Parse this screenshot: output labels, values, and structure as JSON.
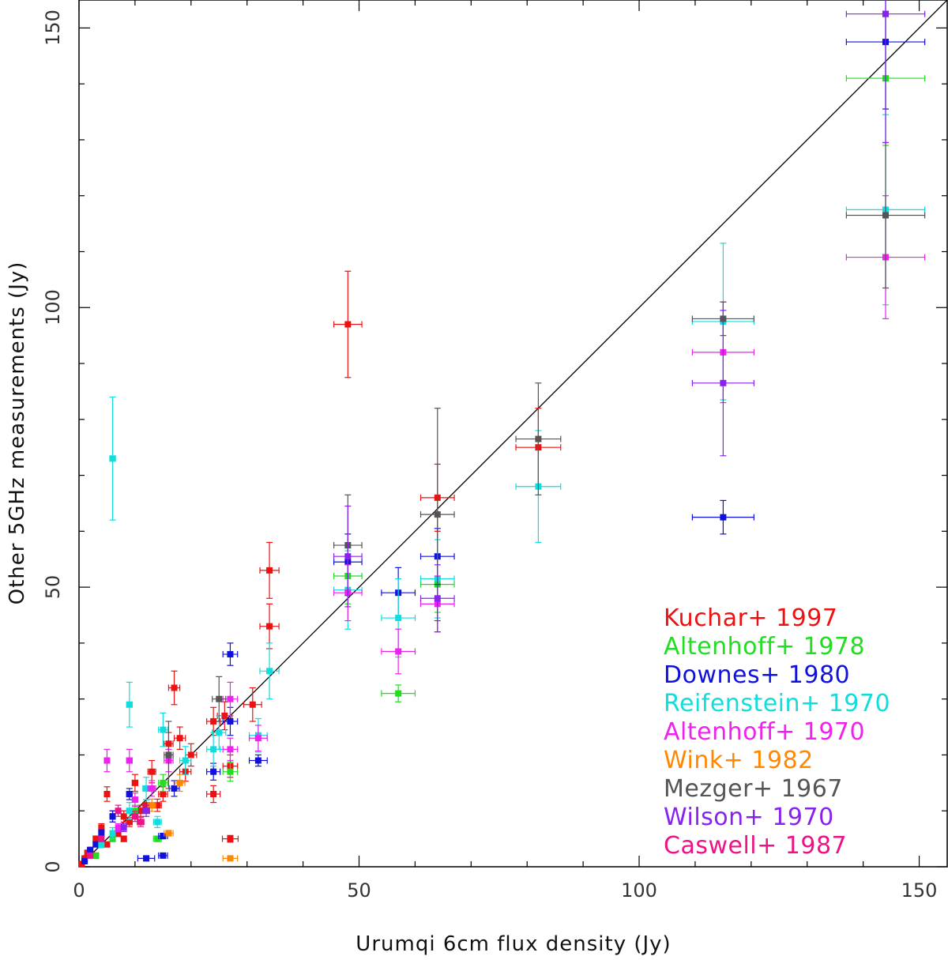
{
  "chart_data": {
    "type": "scatter",
    "xlabel": "Urumqi 6cm flux density (Jy)",
    "ylabel": "Other 5GHz measurements (Jy)",
    "xlim": [
      0,
      155
    ],
    "ylim": [
      0,
      155
    ],
    "xticks": [
      0,
      50,
      100,
      150
    ],
    "yticks": [
      0,
      50,
      100,
      150
    ],
    "xtick_labels": [
      "0",
      "50",
      "100",
      "150"
    ],
    "ytick_labels": [
      "0",
      "50",
      "100",
      "150"
    ],
    "reference_line": "y = x",
    "legend_position": "bottom-right",
    "series": [
      {
        "name": "Kuchar+ 1997",
        "color": "#ee1111",
        "points": [
          {
            "x": 48,
            "y": 97,
            "xerr": 2.5,
            "yerr": 9.5
          },
          {
            "x": 64,
            "y": 66,
            "xerr": 3,
            "yerr": 6
          },
          {
            "x": 82,
            "y": 75,
            "xerr": 4,
            "yerr": 7
          },
          {
            "x": 34,
            "y": 53,
            "xerr": 1.7,
            "yerr": 5
          },
          {
            "x": 34,
            "y": 43,
            "xerr": 1.7,
            "yerr": 4
          },
          {
            "x": 31,
            "y": 29,
            "xerr": 1.6,
            "yerr": 3
          },
          {
            "x": 27,
            "y": 5,
            "xerr": 1.4,
            "yerr": 0.6
          },
          {
            "x": 17,
            "y": 32,
            "xerr": 1,
            "yerr": 3
          },
          {
            "x": 20,
            "y": 20,
            "xerr": 1,
            "yerr": 2
          },
          {
            "x": 18,
            "y": 23,
            "xerr": 1,
            "yerr": 2
          },
          {
            "x": 16,
            "y": 22,
            "xerr": 0.8,
            "yerr": 2
          },
          {
            "x": 24,
            "y": 26,
            "xerr": 1.2,
            "yerr": 2.5
          },
          {
            "x": 26,
            "y": 27,
            "xerr": 1.3,
            "yerr": 2.5
          },
          {
            "x": 27,
            "y": 18,
            "xerr": 1.3,
            "yerr": 2
          },
          {
            "x": 24,
            "y": 13,
            "xerr": 1.2,
            "yerr": 1.5
          },
          {
            "x": 13,
            "y": 17,
            "xerr": 0.7,
            "yerr": 2
          },
          {
            "x": 10,
            "y": 15,
            "xerr": 0.5,
            "yerr": 1.5
          },
          {
            "x": 12,
            "y": 11,
            "xerr": 0.6,
            "yerr": 1
          },
          {
            "x": 15,
            "y": 13,
            "xerr": 0.8,
            "yerr": 1.3
          },
          {
            "x": 5,
            "y": 13,
            "xerr": 0.3,
            "yerr": 1.3
          },
          {
            "x": 6,
            "y": 9,
            "xerr": 0.3,
            "yerr": 1
          },
          {
            "x": 8,
            "y": 9,
            "xerr": 0.4,
            "yerr": 1
          },
          {
            "x": 4,
            "y": 7,
            "xerr": 0.2,
            "yerr": 0.7
          },
          {
            "x": 3,
            "y": 5,
            "xerr": 0.2,
            "yerr": 0.5
          },
          {
            "x": 2,
            "y": 3,
            "xerr": 0.1,
            "yerr": 0.3
          },
          {
            "x": 1,
            "y": 1.5,
            "xerr": 0.1,
            "yerr": 0.2
          },
          {
            "x": 3,
            "y": 2,
            "xerr": 0.2,
            "yerr": 0.3
          },
          {
            "x": 7,
            "y": 6,
            "xerr": 0.4,
            "yerr": 0.6
          },
          {
            "x": 9,
            "y": 8,
            "xerr": 0.5,
            "yerr": 0.8
          },
          {
            "x": 11,
            "y": 10,
            "xerr": 0.6,
            "yerr": 1
          },
          {
            "x": 14,
            "y": 11,
            "xerr": 0.7,
            "yerr": 1.1
          },
          {
            "x": 19,
            "y": 17,
            "xerr": 1,
            "yerr": 1.7
          },
          {
            "x": 0.5,
            "y": 0.5,
            "xerr": 0.1,
            "yerr": 0.1
          },
          {
            "x": 1.5,
            "y": 2.5,
            "xerr": 0.1,
            "yerr": 0.3
          },
          {
            "x": 5,
            "y": 4,
            "xerr": 0.3,
            "yerr": 0.4
          },
          {
            "x": 8,
            "y": 5,
            "xerr": 0.4,
            "yerr": 0.5
          }
        ]
      },
      {
        "name": "Altenhoff+ 1978",
        "color": "#22dd22",
        "points": [
          {
            "x": 144,
            "y": 141,
            "xerr": 7,
            "yerr": 12
          },
          {
            "x": 48,
            "y": 52,
            "xerr": 2.5,
            "yerr": 5
          },
          {
            "x": 57,
            "y": 31,
            "xerr": 3,
            "yerr": 1.5
          },
          {
            "x": 64,
            "y": 50.5,
            "xerr": 3,
            "yerr": 5
          },
          {
            "x": 27,
            "y": 17,
            "xerr": 1.3,
            "yerr": 1.7
          },
          {
            "x": 15,
            "y": 15,
            "xerr": 0.8,
            "yerr": 1.5
          },
          {
            "x": 10,
            "y": 10,
            "xerr": 0.5,
            "yerr": 1
          },
          {
            "x": 14,
            "y": 5,
            "xerr": 0.7,
            "yerr": 0.5
          },
          {
            "x": 3,
            "y": 2,
            "xerr": 0.2,
            "yerr": 0.2
          },
          {
            "x": 6,
            "y": 5,
            "xerr": 0.3,
            "yerr": 0.5
          }
        ]
      },
      {
        "name": "Downes+ 1980",
        "color": "#1111dd",
        "points": [
          {
            "x": 144,
            "y": 147.5,
            "xerr": 7,
            "yerr": 12
          },
          {
            "x": 115,
            "y": 62.5,
            "xerr": 5.5,
            "yerr": 3
          },
          {
            "x": 64,
            "y": 55.5,
            "xerr": 3,
            "yerr": 5
          },
          {
            "x": 57,
            "y": 49,
            "xerr": 3,
            "yerr": 4.5
          },
          {
            "x": 48,
            "y": 54.5,
            "xerr": 2.5,
            "yerr": 5
          },
          {
            "x": 27,
            "y": 38,
            "xerr": 1.3,
            "yerr": 2
          },
          {
            "x": 27,
            "y": 26,
            "xerr": 1.3,
            "yerr": 2.5
          },
          {
            "x": 32,
            "y": 19,
            "xerr": 1.6,
            "yerr": 1
          },
          {
            "x": 24,
            "y": 17,
            "xerr": 1.2,
            "yerr": 1.5
          },
          {
            "x": 12,
            "y": 1.5,
            "xerr": 1.5,
            "yerr": 0.3
          },
          {
            "x": 15,
            "y": 2,
            "xerr": 0.8,
            "yerr": 0.2
          },
          {
            "x": 15,
            "y": 5.5,
            "xerr": 0.8,
            "yerr": 0.5
          },
          {
            "x": 9,
            "y": 13,
            "xerr": 0.5,
            "yerr": 1
          },
          {
            "x": 6,
            "y": 9,
            "xerr": 0.3,
            "yerr": 1
          },
          {
            "x": 3,
            "y": 4,
            "xerr": 0.2,
            "yerr": 0.4
          },
          {
            "x": 17,
            "y": 14,
            "xerr": 0.9,
            "yerr": 1.4
          },
          {
            "x": 4,
            "y": 6,
            "xerr": 0.2,
            "yerr": 0.6
          },
          {
            "x": 2,
            "y": 3,
            "xerr": 0.1,
            "yerr": 0.3
          },
          {
            "x": 1,
            "y": 1,
            "xerr": 0.1,
            "yerr": 0.1
          }
        ]
      },
      {
        "name": "Reifenstein+ 1970",
        "color": "#11dddd",
        "points": [
          {
            "x": 6,
            "y": 73,
            "xerr": 0.5,
            "yerr": 11
          },
          {
            "x": 9,
            "y": 29,
            "xerr": 0.5,
            "yerr": 4
          },
          {
            "x": 144,
            "y": 117.5,
            "xerr": 7,
            "yerr": 17
          },
          {
            "x": 115,
            "y": 97.5,
            "xerr": 5.5,
            "yerr": 14
          },
          {
            "x": 82,
            "y": 68,
            "xerr": 4,
            "yerr": 10
          },
          {
            "x": 64,
            "y": 51.5,
            "xerr": 3,
            "yerr": 7
          },
          {
            "x": 57,
            "y": 44.5,
            "xerr": 3,
            "yerr": 7
          },
          {
            "x": 48,
            "y": 49.5,
            "xerr": 2.5,
            "yerr": 7
          },
          {
            "x": 34,
            "y": 35,
            "xerr": 1.7,
            "yerr": 5
          },
          {
            "x": 32,
            "y": 23.5,
            "xerr": 1.6,
            "yerr": 3
          },
          {
            "x": 24,
            "y": 21,
            "xerr": 1.2,
            "yerr": 3
          },
          {
            "x": 25,
            "y": 24,
            "xerr": 1.2,
            "yerr": 3
          },
          {
            "x": 15,
            "y": 24.5,
            "xerr": 0.8,
            "yerr": 3
          },
          {
            "x": 19,
            "y": 19,
            "xerr": 1,
            "yerr": 2.5
          },
          {
            "x": 12,
            "y": 14,
            "xerr": 0.6,
            "yerr": 2
          },
          {
            "x": 9,
            "y": 10,
            "xerr": 0.5,
            "yerr": 1.5
          },
          {
            "x": 14,
            "y": 8,
            "xerr": 0.7,
            "yerr": 1
          },
          {
            "x": 6,
            "y": 6,
            "xerr": 0.3,
            "yerr": 1
          },
          {
            "x": 4,
            "y": 4,
            "xerr": 0.2,
            "yerr": 0.6
          }
        ]
      },
      {
        "name": "Altenhoff+ 1970",
        "color": "#ee22ee",
        "points": [
          {
            "x": 144,
            "y": 109,
            "xerr": 7,
            "yerr": 11
          },
          {
            "x": 115,
            "y": 92,
            "xerr": 5.5,
            "yerr": 9
          },
          {
            "x": 64,
            "y": 47,
            "xerr": 3,
            "yerr": 5
          },
          {
            "x": 57,
            "y": 38.5,
            "xerr": 3,
            "yerr": 4
          },
          {
            "x": 48,
            "y": 49,
            "xerr": 2.5,
            "yerr": 5
          },
          {
            "x": 27,
            "y": 30,
            "xerr": 1.3,
            "yerr": 3
          },
          {
            "x": 27,
            "y": 21,
            "xerr": 1.3,
            "yerr": 2
          },
          {
            "x": 32,
            "y": 23,
            "xerr": 1.6,
            "yerr": 2.3
          },
          {
            "x": 5,
            "y": 19,
            "xerr": 0.3,
            "yerr": 2
          },
          {
            "x": 9,
            "y": 19,
            "xerr": 0.5,
            "yerr": 2
          },
          {
            "x": 16,
            "y": 19,
            "xerr": 0.8,
            "yerr": 2
          },
          {
            "x": 13,
            "y": 14,
            "xerr": 0.7,
            "yerr": 1.4
          },
          {
            "x": 10,
            "y": 12,
            "xerr": 0.5,
            "yerr": 1.2
          },
          {
            "x": 7,
            "y": 7,
            "xerr": 0.4,
            "yerr": 0.7
          }
        ]
      },
      {
        "name": "Wink+ 1982",
        "color": "#ff8800",
        "points": [
          {
            "x": 16,
            "y": 6,
            "xerr": 0.8,
            "yerr": 0.5
          },
          {
            "x": 27,
            "y": 1.5,
            "xerr": 1.3,
            "yerr": 0.3
          },
          {
            "x": 18,
            "y": 15,
            "xerr": 0.9,
            "yerr": 1.5
          },
          {
            "x": 13,
            "y": 11,
            "xerr": 0.7,
            "yerr": 1.1
          }
        ]
      },
      {
        "name": "Mezger+ 1967",
        "color": "#555555",
        "points": [
          {
            "x": 144,
            "y": 116.5,
            "xerr": 7,
            "yerr": 13
          },
          {
            "x": 115,
            "y": 98,
            "xerr": 5.5,
            "yerr": 3
          },
          {
            "x": 82,
            "y": 76.5,
            "xerr": 4,
            "yerr": 10
          },
          {
            "x": 64,
            "y": 63,
            "xerr": 3,
            "yerr": 19
          },
          {
            "x": 48,
            "y": 57.5,
            "xerr": 2.5,
            "yerr": 9
          },
          {
            "x": 25,
            "y": 30,
            "xerr": 1.2,
            "yerr": 4
          },
          {
            "x": 16,
            "y": 20,
            "xerr": 0.8,
            "yerr": 6
          }
        ]
      },
      {
        "name": "Wilson+ 1970",
        "color": "#8822ee",
        "points": [
          {
            "x": 144,
            "y": 152.5,
            "xerr": 7,
            "yerr": 23
          },
          {
            "x": 115,
            "y": 86.5,
            "xerr": 5.5,
            "yerr": 13
          },
          {
            "x": 64,
            "y": 48,
            "xerr": 3,
            "yerr": 6
          },
          {
            "x": 48,
            "y": 55.5,
            "xerr": 2.5,
            "yerr": 9
          },
          {
            "x": 12,
            "y": 10,
            "xerr": 0.6,
            "yerr": 1
          },
          {
            "x": 8,
            "y": 7,
            "xerr": 0.4,
            "yerr": 0.7
          }
        ]
      },
      {
        "name": "Caswell+ 1987",
        "color": "#ee1188",
        "points": [
          {
            "x": 10,
            "y": 9,
            "xerr": 0.5,
            "yerr": 0.9
          },
          {
            "x": 7,
            "y": 10,
            "xerr": 0.4,
            "yerr": 1
          },
          {
            "x": 11,
            "y": 8,
            "xerr": 0.6,
            "yerr": 0.8
          },
          {
            "x": 4,
            "y": 5,
            "xerr": 0.2,
            "yerr": 0.5
          },
          {
            "x": 2,
            "y": 2,
            "xerr": 0.1,
            "yerr": 0.2
          }
        ]
      }
    ]
  }
}
